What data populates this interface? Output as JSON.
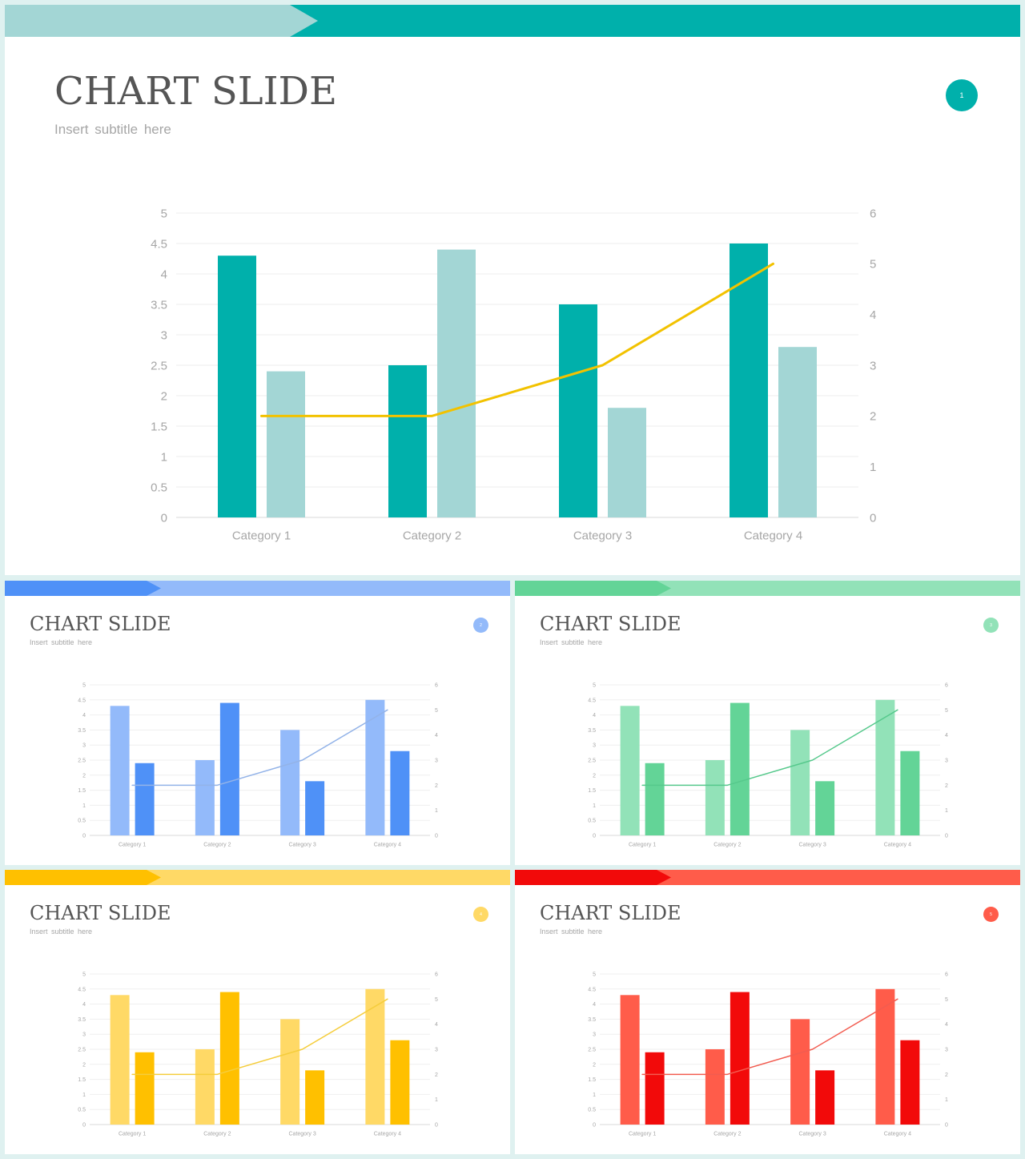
{
  "slides": [
    {
      "id": "main",
      "title": "CHART SLIDE",
      "subtitle": "Insert  subtitle  here",
      "page_number": "1",
      "colors": {
        "band_light": "#a3d6d5",
        "band_dark": "#00b0ab",
        "bar_a": "#00b0ab",
        "bar_b": "#a3d6d5",
        "line": "#f2c200",
        "badge": "#00b0ab"
      }
    },
    {
      "id": "blue",
      "title": "CHART SLIDE",
      "subtitle": "Insert  subtitle  here",
      "page_number": "2",
      "colors": {
        "band_light": "#93bafa",
        "band_dark": "#4f91f7",
        "bar_a": "#93bafa",
        "bar_b": "#4f91f7",
        "line": "#93b3e8",
        "badge": "#93bafa"
      }
    },
    {
      "id": "green",
      "title": "CHART SLIDE",
      "subtitle": "Insert  subtitle  here",
      "page_number": "3",
      "colors": {
        "band_light": "#92e2b8",
        "band_dark": "#63d497",
        "bar_a": "#92e2b8",
        "bar_b": "#63d497",
        "line": "#56c98c",
        "badge": "#92e2b8"
      }
    },
    {
      "id": "yellow",
      "title": "CHART SLIDE",
      "subtitle": "Insert  subtitle  here",
      "page_number": "4",
      "colors": {
        "band_light": "#ffd966",
        "band_dark": "#ffc000",
        "bar_a": "#ffd966",
        "bar_b": "#ffc000",
        "line": "#f5cd3c",
        "badge": "#ffd966"
      }
    },
    {
      "id": "red",
      "title": "CHART SLIDE",
      "subtitle": "Insert  subtitle  here",
      "page_number": "5",
      "colors": {
        "band_light": "#ff5c4a",
        "band_dark": "#f20a0a",
        "bar_a": "#ff5c4a",
        "bar_b": "#f20a0a",
        "line": "#f25c50",
        "badge": "#ff5c4a"
      }
    }
  ],
  "chart_data": [
    {
      "type": "bar",
      "title": "",
      "categories": [
        "Category 1",
        "Category 2",
        "Category 3",
        "Category 4"
      ],
      "series": [
        {
          "type": "bar",
          "values": [
            4.3,
            2.5,
            3.5,
            4.5
          ]
        },
        {
          "type": "bar",
          "values": [
            2.4,
            4.4,
            1.8,
            2.8
          ]
        },
        {
          "type": "line",
          "axis": "secondary",
          "values": [
            2,
            2,
            3,
            5
          ]
        }
      ],
      "ylim": [
        0,
        5
      ],
      "yticks": [
        "0",
        "0.5",
        "1",
        "1.5",
        "2",
        "2.5",
        "3",
        "3.5",
        "4",
        "4.5",
        "5"
      ],
      "y2lim": [
        0,
        6
      ],
      "y2ticks": [
        "0",
        "1",
        "2",
        "3",
        "4",
        "5",
        "6"
      ],
      "grid": true,
      "legend": "none"
    },
    {
      "type": "bar",
      "title": "",
      "categories": [
        "Category 1",
        "Category 2",
        "Category 3",
        "Category 4"
      ],
      "series": [
        {
          "type": "bar",
          "values": [
            4.3,
            2.5,
            3.5,
            4.5
          ]
        },
        {
          "type": "bar",
          "values": [
            2.4,
            4.4,
            1.8,
            2.8
          ]
        },
        {
          "type": "line",
          "axis": "secondary",
          "values": [
            2,
            2,
            3,
            5
          ]
        }
      ],
      "ylim": [
        0,
        5
      ],
      "yticks": [
        "0",
        "0.5",
        "1",
        "1.5",
        "2",
        "2.5",
        "3",
        "3.5",
        "4",
        "4.5",
        "5"
      ],
      "y2lim": [
        0,
        6
      ],
      "y2ticks": [
        "0",
        "1",
        "2",
        "3",
        "4",
        "5",
        "6"
      ],
      "grid": true,
      "legend": "none"
    },
    {
      "type": "bar",
      "title": "",
      "categories": [
        "Category 1",
        "Category 2",
        "Category 3",
        "Category 4"
      ],
      "series": [
        {
          "type": "bar",
          "values": [
            4.3,
            2.5,
            3.5,
            4.5
          ]
        },
        {
          "type": "bar",
          "values": [
            2.4,
            4.4,
            1.8,
            2.8
          ]
        },
        {
          "type": "line",
          "axis": "secondary",
          "values": [
            2,
            2,
            3,
            5
          ]
        }
      ],
      "ylim": [
        0,
        5
      ],
      "yticks": [
        "0",
        "0.5",
        "1",
        "1.5",
        "2",
        "2.5",
        "3",
        "3.5",
        "4",
        "4.5",
        "5"
      ],
      "y2lim": [
        0,
        6
      ],
      "y2ticks": [
        "0",
        "1",
        "2",
        "3",
        "4",
        "5",
        "6"
      ],
      "grid": true,
      "legend": "none"
    },
    {
      "type": "bar",
      "title": "",
      "categories": [
        "Category 1",
        "Category 2",
        "Category 3",
        "Category 4"
      ],
      "series": [
        {
          "type": "bar",
          "values": [
            4.3,
            2.5,
            3.5,
            4.5
          ]
        },
        {
          "type": "bar",
          "values": [
            2.4,
            4.4,
            1.8,
            2.8
          ]
        },
        {
          "type": "line",
          "axis": "secondary",
          "values": [
            2,
            2,
            3,
            5
          ]
        }
      ],
      "ylim": [
        0,
        5
      ],
      "yticks": [
        "0",
        "0.5",
        "1",
        "1.5",
        "2",
        "2.5",
        "3",
        "3.5",
        "4",
        "4.5",
        "5"
      ],
      "y2lim": [
        0,
        6
      ],
      "y2ticks": [
        "0",
        "1",
        "2",
        "3",
        "4",
        "5",
        "6"
      ],
      "grid": true,
      "legend": "none"
    },
    {
      "type": "bar",
      "title": "",
      "categories": [
        "Category 1",
        "Category 2",
        "Category 3",
        "Category 4"
      ],
      "series": [
        {
          "type": "bar",
          "values": [
            4.3,
            2.5,
            3.5,
            4.5
          ]
        },
        {
          "type": "bar",
          "values": [
            2.4,
            4.4,
            1.8,
            2.8
          ]
        },
        {
          "type": "line",
          "axis": "secondary",
          "values": [
            2,
            2,
            3,
            5
          ]
        }
      ],
      "ylim": [
        0,
        5
      ],
      "yticks": [
        "0",
        "0.5",
        "1",
        "1.5",
        "2",
        "2.5",
        "3",
        "3.5",
        "4",
        "4.5",
        "5"
      ],
      "y2lim": [
        0,
        6
      ],
      "y2ticks": [
        "0",
        "1",
        "2",
        "3",
        "4",
        "5",
        "6"
      ],
      "grid": true,
      "legend": "none"
    }
  ]
}
